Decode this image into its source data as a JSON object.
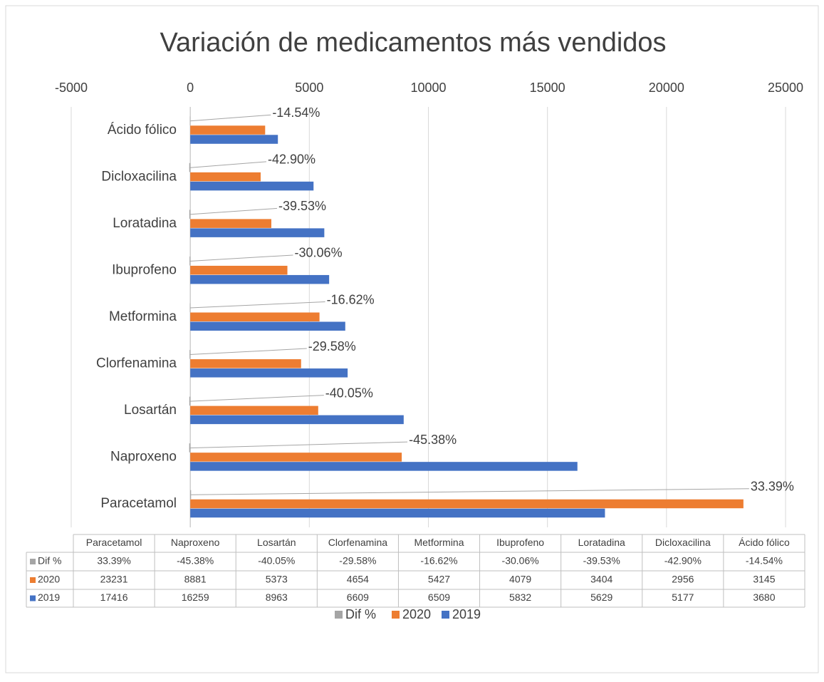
{
  "chart_data": {
    "type": "hbar",
    "title": "Variación de medicamentos más vendidos",
    "categories": [
      "Paracetamol",
      "Naproxeno",
      "Losartán",
      "Clorfenamina",
      "Metformina",
      "Ibuprofeno",
      "Loratadina",
      "Dicloxacilina",
      "Ácido fólico"
    ],
    "series": [
      {
        "name": "Dif %",
        "color": "#a5a5a5",
        "values": [
          33.39,
          -45.38,
          -40.05,
          -29.58,
          -16.62,
          -30.06,
          -39.53,
          -42.9,
          -14.54
        ],
        "value_labels": [
          "33.39%",
          "-45.38%",
          "-40.05%",
          "-29.58%",
          "-16.62%",
          "-30.06%",
          "-39.53%",
          "-42.90%",
          "-14.54%"
        ]
      },
      {
        "name": "2020",
        "color": "#ed7d31",
        "values": [
          23231,
          8881,
          5373,
          4654,
          5427,
          4079,
          3404,
          2956,
          3145
        ]
      },
      {
        "name": "2019",
        "color": "#4472c4",
        "values": [
          17416,
          16259,
          8963,
          6609,
          6509,
          5832,
          5629,
          5177,
          3680
        ]
      }
    ],
    "xlim": [
      -5000,
      25000
    ],
    "xticks": [
      -5000,
      0,
      5000,
      10000,
      15000,
      20000,
      25000
    ],
    "grid": true,
    "legend": "bottom"
  }
}
